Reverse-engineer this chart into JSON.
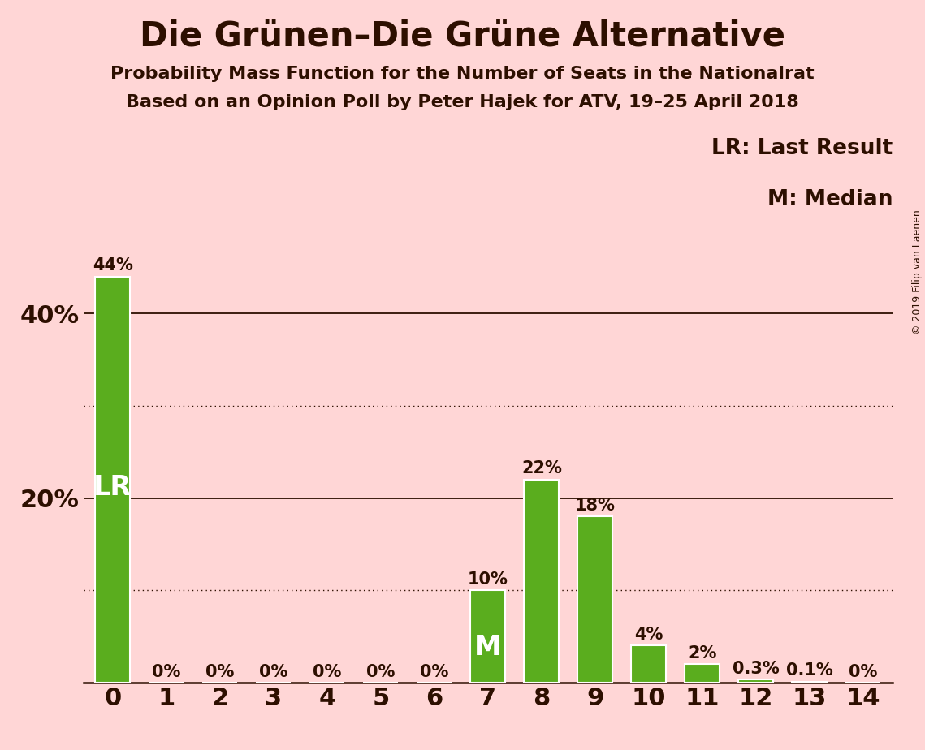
{
  "title": "Die Grünen–Die Grüne Alternative",
  "subtitle1": "Probability Mass Function for the Number of Seats in the Nationalrat",
  "subtitle2": "Based on an Opinion Poll by Peter Hajek for ATV, 19–25 April 2018",
  "copyright": "© 2019 Filip van Laenen",
  "categories": [
    0,
    1,
    2,
    3,
    4,
    5,
    6,
    7,
    8,
    9,
    10,
    11,
    12,
    13,
    14
  ],
  "values": [
    44,
    0,
    0,
    0,
    0,
    0,
    0,
    10,
    22,
    18,
    4,
    2,
    0.3,
    0.1,
    0
  ],
  "labels": [
    "44%",
    "0%",
    "0%",
    "0%",
    "0%",
    "0%",
    "0%",
    "10%",
    "22%",
    "18%",
    "4%",
    "2%",
    "0.3%",
    "0.1%",
    "0%"
  ],
  "bar_color": "#5aad1e",
  "bar_edge_color": "white",
  "background_color": "#ffd6d6",
  "text_color": "#2d0f00",
  "label_color_inside": "white",
  "lr_bar": 0,
  "median_bar": 7,
  "legend_line1": "LR: Last Result",
  "legend_line2": "M: Median",
  "ylim": [
    0,
    50
  ],
  "solid_gridlines": [
    20,
    40
  ],
  "dotted_gridlines": [
    10,
    30
  ],
  "title_fontsize": 30,
  "subtitle_fontsize": 16,
  "axis_tick_fontsize": 22,
  "bar_label_fontsize": 15,
  "inside_label_fontsize": 24,
  "legend_fontsize": 19,
  "copyright_fontsize": 9,
  "bar_width": 0.65
}
